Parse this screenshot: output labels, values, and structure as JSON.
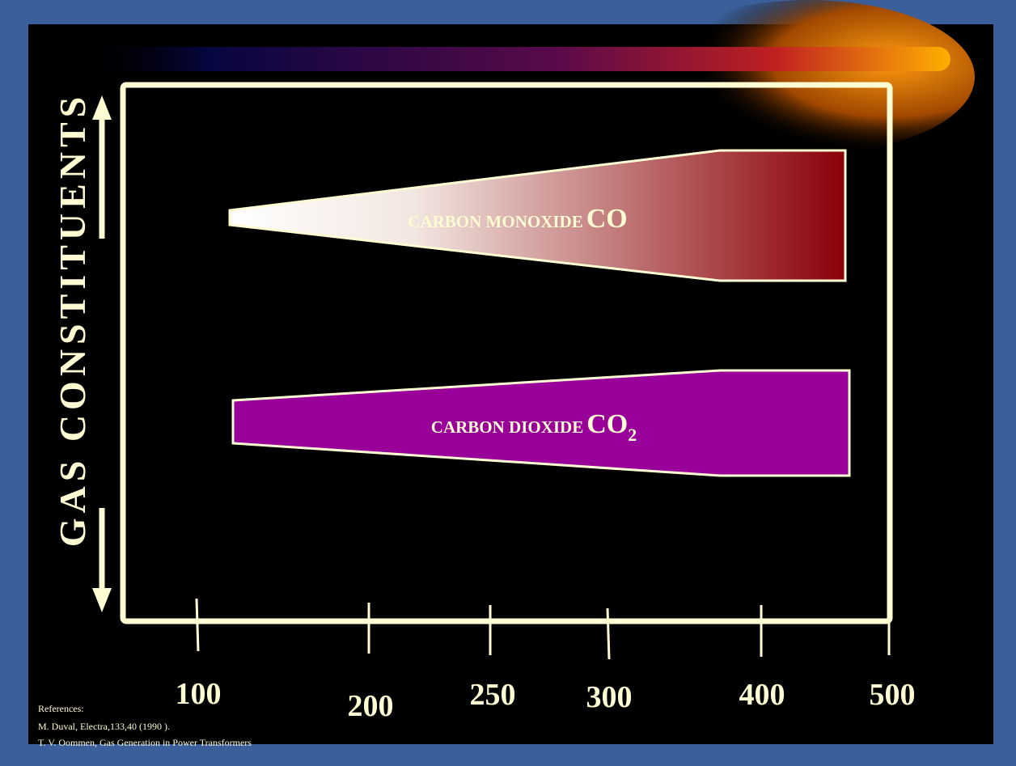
{
  "axis": {
    "y_label": "GAS CONSTITUENTS",
    "x_ticks": [
      "100",
      "200",
      "250",
      "300",
      "400",
      "500"
    ]
  },
  "bands": [
    {
      "label": "CARBON MONOXIDE",
      "formula": "CO"
    },
    {
      "label": "CARBON DIOXIDE",
      "formula": "CO",
      "subscript": "2"
    }
  ],
  "references": {
    "title": "References:",
    "lines": [
      "M. Duval, Electra,133,40 (1990 ).",
      "T. V. Oommen, Gas Generation in Power Transformers"
    ]
  }
}
